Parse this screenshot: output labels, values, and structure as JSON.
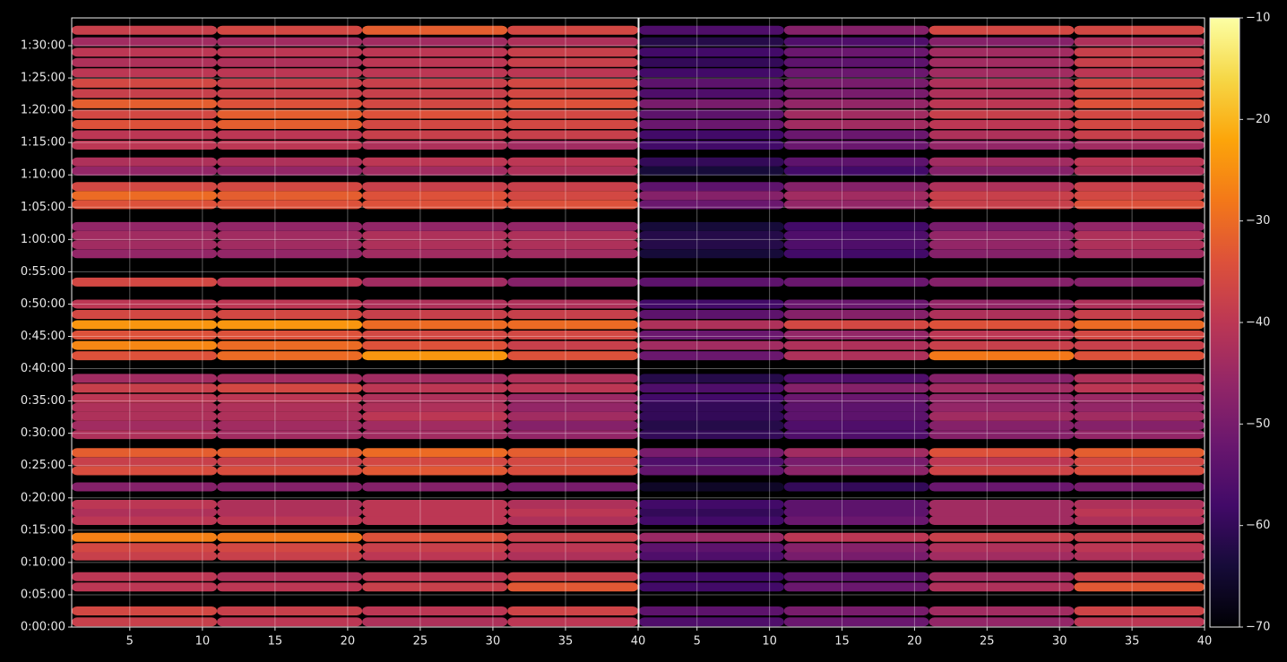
{
  "chart_data": [
    {
      "type": "heatmap",
      "bins": [
        1,
        11,
        21,
        31,
        40
      ],
      "y": [
        48,
        150,
        372,
        468,
        660,
        738,
        834,
        990,
        1068,
        1140,
        1302,
        1452,
        1536,
        1620,
        1788,
        1872,
        1956,
        2040,
        2124,
        2220,
        2310,
        2520,
        2616,
        2712,
        2808,
        2904,
        3000,
        3204,
        3468,
        3552,
        3636,
        3720,
        3924,
        4008,
        4092,
        4236,
        4320,
        4476,
        4572,
        4668,
        4764,
        4860,
        4956,
        5052,
        5148,
        5244,
        5340,
        5436,
        5544
      ],
      "values": [
        [
          -38,
          -40,
          -42,
          -40
        ],
        [
          -36,
          -38,
          -40,
          -37
        ],
        [
          -40,
          -40,
          -38,
          -33
        ],
        [
          -40,
          -42,
          -40,
          -38
        ],
        [
          -38,
          -38,
          -40,
          -42
        ],
        [
          -36,
          -36,
          -38,
          -40
        ],
        [
          -27,
          -28,
          -34,
          -38
        ],
        [
          -40,
          -40,
          -40,
          -42
        ],
        [
          -42,
          -42,
          -40,
          -40
        ],
        [
          -40,
          -42,
          -40,
          -42
        ],
        [
          -48,
          -48,
          -48,
          -50
        ],
        [
          -35,
          -35,
          -33,
          -35
        ],
        [
          -38,
          -38,
          -36,
          -36
        ],
        [
          -32,
          -32,
          -30,
          -32
        ],
        [
          -42,
          -44,
          -44,
          -46
        ],
        [
          -44,
          -44,
          -44,
          -48
        ],
        [
          -42,
          -42,
          -40,
          -44
        ],
        [
          -42,
          -42,
          -42,
          -46
        ],
        [
          -40,
          -40,
          -42,
          -45
        ],
        [
          -38,
          -36,
          -40,
          -40
        ],
        [
          -44,
          -44,
          -44,
          -42
        ],
        [
          -34,
          -30,
          -24,
          -34
        ],
        [
          -26,
          -30,
          -34,
          -38
        ],
        [
          -34,
          -34,
          -36,
          -36
        ],
        [
          -24,
          -24,
          -30,
          -30
        ],
        [
          -36,
          -36,
          -38,
          -38
        ],
        [
          -40,
          -40,
          -42,
          -42
        ],
        [
          -36,
          -40,
          -44,
          -48
        ],
        [
          -46,
          -46,
          -44,
          -44
        ],
        [
          -44,
          -44,
          -42,
          -42
        ],
        [
          -44,
          -44,
          -42,
          -42
        ],
        [
          -46,
          -46,
          -46,
          -46
        ],
        [
          -34,
          -34,
          -34,
          -34
        ],
        [
          -30,
          -32,
          -34,
          -36
        ],
        [
          -36,
          -36,
          -38,
          -38
        ],
        [
          -46,
          -46,
          -44,
          -42
        ],
        [
          -42,
          -42,
          -40,
          -40
        ],
        [
          -40,
          -40,
          -42,
          -44
        ],
        [
          -40,
          -40,
          -38,
          -38
        ],
        [
          -34,
          -32,
          -36,
          -36
        ],
        [
          -36,
          -32,
          -34,
          -36
        ],
        [
          -32,
          -34,
          -36,
          -34
        ],
        [
          -38,
          -38,
          -38,
          -36
        ],
        [
          -36,
          -38,
          -38,
          -36
        ],
        [
          -40,
          -40,
          -40,
          -40
        ],
        [
          -42,
          -42,
          -40,
          -38
        ],
        [
          -40,
          -40,
          -40,
          -38
        ],
        [
          -44,
          -44,
          -44,
          -42
        ],
        [
          -38,
          -36,
          -32,
          -36
        ]
      ],
      "xlim": [
        1,
        40
      ],
      "xticks": [
        5,
        10,
        15,
        20,
        25,
        30,
        35,
        40
      ],
      "ylim": [
        0,
        5658
      ],
      "yticks": [
        {
          "value": 0,
          "label": "0:00:00"
        },
        {
          "value": 300,
          "label": "0:05:00"
        },
        {
          "value": 600,
          "label": "0:10:00"
        },
        {
          "value": 900,
          "label": "0:15:00"
        },
        {
          "value": 1200,
          "label": "0:20:00"
        },
        {
          "value": 1500,
          "label": "0:25:00"
        },
        {
          "value": 1800,
          "label": "0:30:00"
        },
        {
          "value": 2100,
          "label": "0:35:00"
        },
        {
          "value": 2400,
          "label": "0:40:00"
        },
        {
          "value": 2700,
          "label": "0:45:00"
        },
        {
          "value": 3000,
          "label": "0:50:00"
        },
        {
          "value": 3300,
          "label": "0:55:00"
        },
        {
          "value": 3600,
          "label": "1:00:00"
        },
        {
          "value": 3900,
          "label": "1:05:00"
        },
        {
          "value": 4200,
          "label": "1:10:00"
        },
        {
          "value": 4500,
          "label": "1:15:00"
        },
        {
          "value": 4800,
          "label": "1:20:00"
        },
        {
          "value": 5100,
          "label": "1:25:00"
        },
        {
          "value": 5400,
          "label": "1:30:00"
        }
      ],
      "grid": true
    },
    {
      "type": "heatmap",
      "bins": [
        1,
        11,
        21,
        31,
        40
      ],
      "y": [
        48,
        150,
        372,
        468,
        660,
        738,
        834,
        990,
        1068,
        1140,
        1302,
        1452,
        1536,
        1620,
        1788,
        1872,
        1956,
        2040,
        2124,
        2220,
        2310,
        2520,
        2616,
        2712,
        2808,
        2904,
        3000,
        3204,
        3468,
        3552,
        3636,
        3720,
        3924,
        4008,
        4092,
        4236,
        4320,
        4476,
        4572,
        4668,
        4764,
        4860,
        4956,
        5052,
        5148,
        5244,
        5340,
        5436,
        5544
      ],
      "values": [
        [
          -56,
          -52,
          -46,
          -40
        ],
        [
          -54,
          -50,
          -44,
          -37
        ],
        [
          -58,
          -52,
          -42,
          -33
        ],
        [
          -58,
          -54,
          -44,
          -38
        ],
        [
          -56,
          -50,
          -44,
          -42
        ],
        [
          -54,
          -48,
          -42,
          -40
        ],
        [
          -45,
          -40,
          -38,
          -38
        ],
        [
          -58,
          -52,
          -44,
          -42
        ],
        [
          -60,
          -54,
          -44,
          -40
        ],
        [
          -58,
          -54,
          -44,
          -42
        ],
        [
          -66,
          -60,
          -52,
          -50
        ],
        [
          -53,
          -47,
          -37,
          -35
        ],
        [
          -56,
          -50,
          -40,
          -36
        ],
        [
          -50,
          -44,
          -34,
          -32
        ],
        [
          -60,
          -56,
          -48,
          -46
        ],
        [
          -62,
          -56,
          -48,
          -48
        ],
        [
          -60,
          -54,
          -44,
          -44
        ],
        [
          -60,
          -54,
          -46,
          -46
        ],
        [
          -58,
          -52,
          -46,
          -45
        ],
        [
          -56,
          -48,
          -44,
          -40
        ],
        [
          -62,
          -56,
          -48,
          -42
        ],
        [
          -52,
          -42,
          -28,
          -34
        ],
        [
          -44,
          -42,
          -38,
          -38
        ],
        [
          -52,
          -46,
          -40,
          -36
        ],
        [
          -42,
          -36,
          -34,
          -30
        ],
        [
          -54,
          -48,
          -42,
          -38
        ],
        [
          -58,
          -52,
          -46,
          -42
        ],
        [
          -54,
          -52,
          -48,
          -48
        ],
        [
          -64,
          -58,
          -48,
          -44
        ],
        [
          -62,
          -56,
          -46,
          -42
        ],
        [
          -62,
          -56,
          -46,
          -42
        ],
        [
          -64,
          -58,
          -50,
          -46
        ],
        [
          -52,
          -46,
          -38,
          -34
        ],
        [
          -48,
          -44,
          -38,
          -36
        ],
        [
          -54,
          -48,
          -42,
          -38
        ],
        [
          -64,
          -58,
          -48,
          -42
        ],
        [
          -60,
          -54,
          -44,
          -40
        ],
        [
          -58,
          -52,
          -46,
          -44
        ],
        [
          -58,
          -52,
          -42,
          -38
        ],
        [
          -52,
          -44,
          -40,
          -36
        ],
        [
          -54,
          -44,
          -38,
          -36
        ],
        [
          -50,
          -46,
          -40,
          -34
        ],
        [
          -56,
          -50,
          -42,
          -36
        ],
        [
          -54,
          -50,
          -42,
          -36
        ],
        [
          -58,
          -52,
          -44,
          -40
        ],
        [
          -60,
          -54,
          -44,
          -38
        ],
        [
          -58,
          -52,
          -44,
          -38
        ],
        [
          -62,
          -56,
          -48,
          -42
        ],
        [
          -56,
          -48,
          -36,
          -36
        ]
      ],
      "xlim": [
        1,
        40
      ],
      "xticks": [
        5,
        10,
        15,
        20,
        25,
        30,
        35,
        40
      ],
      "ylim": [
        0,
        5658
      ],
      "grid": true
    }
  ],
  "colorbar": {
    "colormap": "inferno",
    "lim": [
      -70,
      -10
    ],
    "ticks": [
      {
        "value": -70,
        "label": "−70"
      },
      {
        "value": -60,
        "label": "−60"
      },
      {
        "value": -50,
        "label": "−50"
      },
      {
        "value": -40,
        "label": "−40"
      },
      {
        "value": -30,
        "label": "−30"
      },
      {
        "value": -20,
        "label": "−20"
      },
      {
        "value": -10,
        "label": "−10"
      }
    ]
  }
}
